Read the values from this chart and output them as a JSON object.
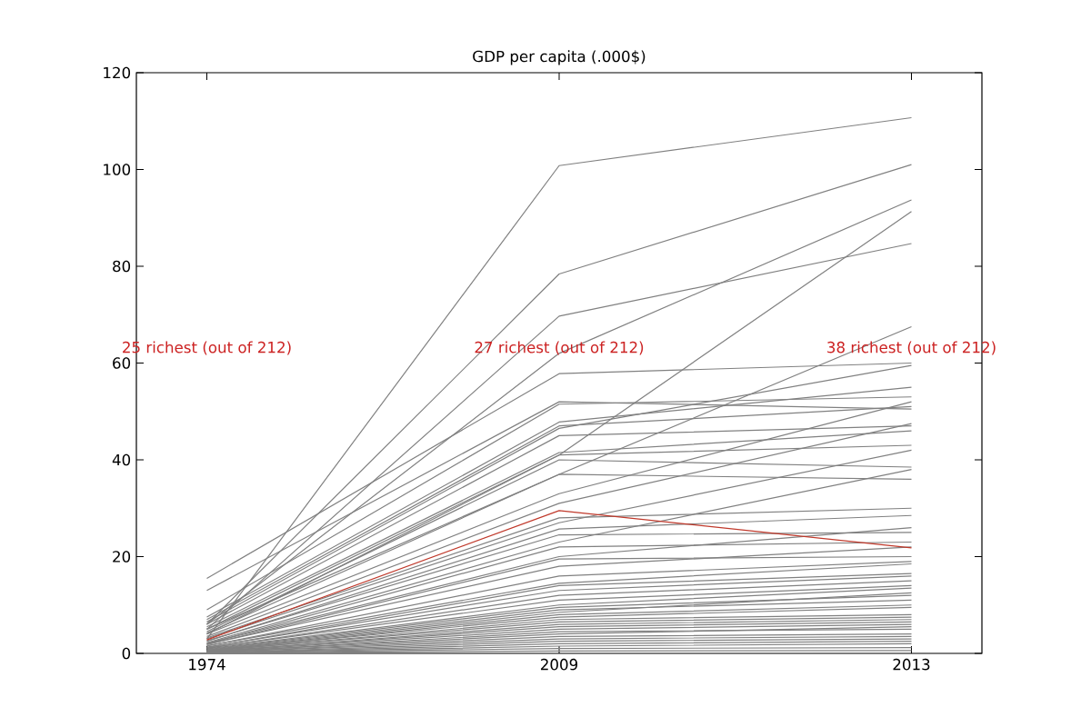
{
  "chart_data": {
    "type": "line",
    "title": "GDP per capita (.000$)",
    "categories": [
      "1974",
      "2009",
      "2013"
    ],
    "ylim": [
      0,
      120
    ],
    "yticks": [
      0,
      20,
      40,
      60,
      80,
      100,
      120
    ],
    "marker": "none",
    "line_style": "solid",
    "annotations": [
      "25 richest (out of 212)",
      "27 richest (out of 212)",
      "38 richest (out of 212)"
    ],
    "series": [
      {
        "color": "#808080",
        "values": [
          3,
          100.8,
          110.7
        ]
      },
      {
        "color": "#808080",
        "values": [
          6,
          78.4,
          101
        ]
      },
      {
        "color": "#808080",
        "values": [
          5,
          69.7,
          84.7
        ]
      },
      {
        "color": "#808080",
        "values": [
          6,
          62,
          93.7
        ]
      },
      {
        "color": "#808080",
        "values": [
          4,
          41,
          91.3
        ]
      },
      {
        "color": "#808080",
        "values": [
          5,
          37,
          67.5
        ]
      },
      {
        "color": "#808080",
        "values": [
          15.5,
          57.8,
          60
        ]
      },
      {
        "color": "#808080",
        "values": [
          13,
          52,
          50.5
        ]
      },
      {
        "color": "#808080",
        "values": [
          9,
          51.5,
          53
        ]
      },
      {
        "color": "#808080",
        "values": [
          7.5,
          47.8,
          55
        ]
      },
      {
        "color": "#808080",
        "values": [
          7,
          47,
          51
        ]
      },
      {
        "color": "#808080",
        "values": [
          6.5,
          46.5,
          59.5
        ]
      },
      {
        "color": "#808080",
        "values": [
          6,
          45,
          47
        ]
      },
      {
        "color": "#808080",
        "values": [
          5.5,
          41.5,
          46
        ]
      },
      {
        "color": "#808080",
        "values": [
          5,
          41,
          43
        ]
      },
      {
        "color": "#808080",
        "values": [
          4.5,
          40,
          38.5
        ]
      },
      {
        "color": "#808080",
        "values": [
          4.2,
          37,
          36
        ]
      },
      {
        "color": "#808080",
        "values": [
          4,
          33,
          52
        ]
      },
      {
        "color": "#808080",
        "values": [
          3.5,
          31,
          47.5
        ]
      },
      {
        "color": "#808080",
        "values": [
          3.2,
          28,
          30
        ]
      },
      {
        "color": "#808080",
        "values": [
          3,
          27,
          42
        ]
      },
      {
        "color": "#808080",
        "values": [
          2.5,
          25.7,
          28.5
        ]
      },
      {
        "color": "#808080",
        "values": [
          2.6,
          24.5,
          25
        ]
      },
      {
        "color": "#808080",
        "values": [
          2.2,
          23,
          38
        ]
      },
      {
        "color": "#808080",
        "values": [
          2,
          22,
          23
        ]
      },
      {
        "color": "#808080",
        "values": [
          2.1,
          20,
          26
        ]
      },
      {
        "color": "#808080",
        "values": [
          1.8,
          19.5,
          20
        ]
      },
      {
        "color": "#808080",
        "values": [
          1.9,
          18,
          22
        ]
      },
      {
        "color": "#808080",
        "values": [
          1.5,
          16,
          19
        ]
      },
      {
        "color": "#808080",
        "values": [
          1.6,
          14.5,
          18.5
        ]
      },
      {
        "color": "#808080",
        "values": [
          1.2,
          14,
          16.5
        ]
      },
      {
        "color": "#808080",
        "values": [
          1.3,
          13,
          16
        ]
      },
      {
        "color": "#808080",
        "values": [
          1,
          12,
          15
        ]
      },
      {
        "color": "#808080",
        "values": [
          1.1,
          11,
          14
        ]
      },
      {
        "color": "#808080",
        "values": [
          0.9,
          10,
          13.5
        ]
      },
      {
        "color": "#808080",
        "values": [
          0.8,
          9.5,
          12
        ]
      },
      {
        "color": "#808080",
        "values": [
          0.7,
          9,
          11
        ]
      },
      {
        "color": "#808080",
        "values": [
          0.6,
          8.5,
          12.5
        ]
      },
      {
        "color": "#808080",
        "values": [
          0.5,
          8,
          10
        ]
      },
      {
        "color": "#808080",
        "values": [
          0.6,
          7.5,
          9.5
        ]
      },
      {
        "color": "#808080",
        "values": [
          0.4,
          7,
          8
        ]
      },
      {
        "color": "#808080",
        "values": [
          0.5,
          6.5,
          7.5
        ]
      },
      {
        "color": "#808080",
        "values": [
          0.3,
          6,
          7
        ]
      },
      {
        "color": "#808080",
        "values": [
          0.4,
          5.5,
          6.5
        ]
      },
      {
        "color": "#808080",
        "values": [
          0.3,
          5,
          6
        ]
      },
      {
        "color": "#808080",
        "values": [
          0.2,
          4.5,
          5
        ]
      },
      {
        "color": "#808080",
        "values": [
          0.3,
          4,
          5.5
        ]
      },
      {
        "color": "#808080",
        "values": [
          0.2,
          3.5,
          4
        ]
      },
      {
        "color": "#808080",
        "values": [
          0.2,
          3,
          3.5
        ]
      },
      {
        "color": "#808080",
        "values": [
          0.1,
          2.5,
          3
        ]
      },
      {
        "color": "#808080",
        "values": [
          0.1,
          2,
          2.5
        ]
      },
      {
        "color": "#808080",
        "values": [
          0.1,
          1.5,
          2
        ]
      },
      {
        "color": "#808080",
        "values": [
          0.1,
          1,
          1.2
        ]
      },
      {
        "color": "#808080",
        "values": [
          0.1,
          0.5,
          0.6
        ]
      },
      {
        "color": "#c0392b",
        "values": [
          2.8,
          29.5,
          21.8
        ]
      }
    ]
  }
}
